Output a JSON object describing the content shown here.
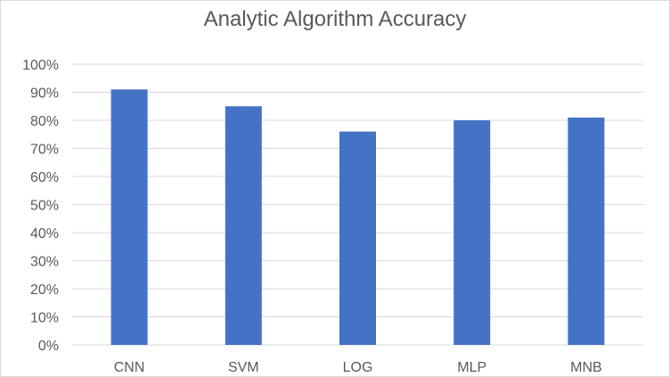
{
  "chart_data": {
    "type": "bar",
    "title": "Analytic Algorithm Accuracy",
    "xlabel": "",
    "ylabel": "",
    "categories": [
      "CNN",
      "SVM",
      "LOG",
      "MLP",
      "MNB"
    ],
    "values": [
      91,
      85,
      76,
      80,
      81
    ],
    "ylim": [
      0,
      100
    ],
    "yticks": [
      "0%",
      "10%",
      "20%",
      "30%",
      "40%",
      "50%",
      "60%",
      "70%",
      "80%",
      "90%",
      "100%"
    ],
    "grid": true,
    "legend": "none",
    "bar_color": "#4472c4",
    "grid_color": "#d9d9d9"
  }
}
